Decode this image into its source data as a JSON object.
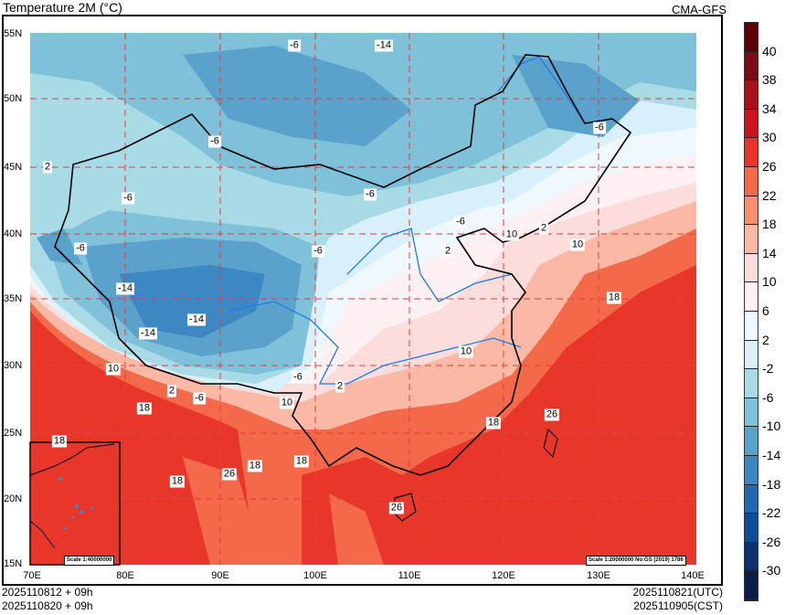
{
  "header": {
    "title": "Temperature  2M (°C)",
    "model": "CMA-GFS"
  },
  "axes": {
    "lat_labels": [
      "55N",
      "50N",
      "45N",
      "40N",
      "35N",
      "30N",
      "25N",
      "20N",
      "15N"
    ],
    "lon_labels": [
      "70E",
      "80E",
      "90E",
      "100E",
      "110E",
      "120E",
      "130E",
      "140E"
    ]
  },
  "footer": {
    "init_left_1": "2025110812 + 09h",
    "init_left_2": "2025110820 + 09h",
    "valid_utc": "2025110821(UTC)",
    "valid_cst": "2025110905(CST)"
  },
  "scales": {
    "inset": "Scale 1:40000000",
    "main": "Scale 1:20000000 No:GS (2019) 1786"
  },
  "contour_labels": [
    "-6",
    "-14",
    "-6",
    "2",
    "-6",
    "-6",
    "-6",
    "-6",
    "-6",
    "10",
    "2",
    "10",
    "2",
    "-14",
    "-14",
    "-14",
    "18",
    "10",
    "2",
    "-6",
    "-6",
    "10",
    "2",
    "10",
    "18",
    "26",
    "18",
    "18",
    "18",
    "26",
    "18",
    "18",
    "26",
    "-6"
  ],
  "colorbar": {
    "labels": [
      "40",
      "38",
      "34",
      "30",
      "26",
      "22",
      "18",
      "14",
      "10",
      "6",
      "2",
      "-2",
      "-6",
      "-10",
      "-14",
      "-18",
      "-22",
      "-26",
      "-30"
    ],
    "colors": [
      "#5a0005",
      "#7a0d14",
      "#a51218",
      "#c9151e",
      "#e8372a",
      "#f4694a",
      "#f88f70",
      "#fbb8a4",
      "#fddcdc",
      "#fff0f3",
      "#eef8fd",
      "#d8f0fb",
      "#a8dbe6",
      "#7ec1d8",
      "#5aa2cc",
      "#3d88c2",
      "#2368ae",
      "#0d4c96",
      "#0b3170",
      "#0a1f48"
    ]
  }
}
